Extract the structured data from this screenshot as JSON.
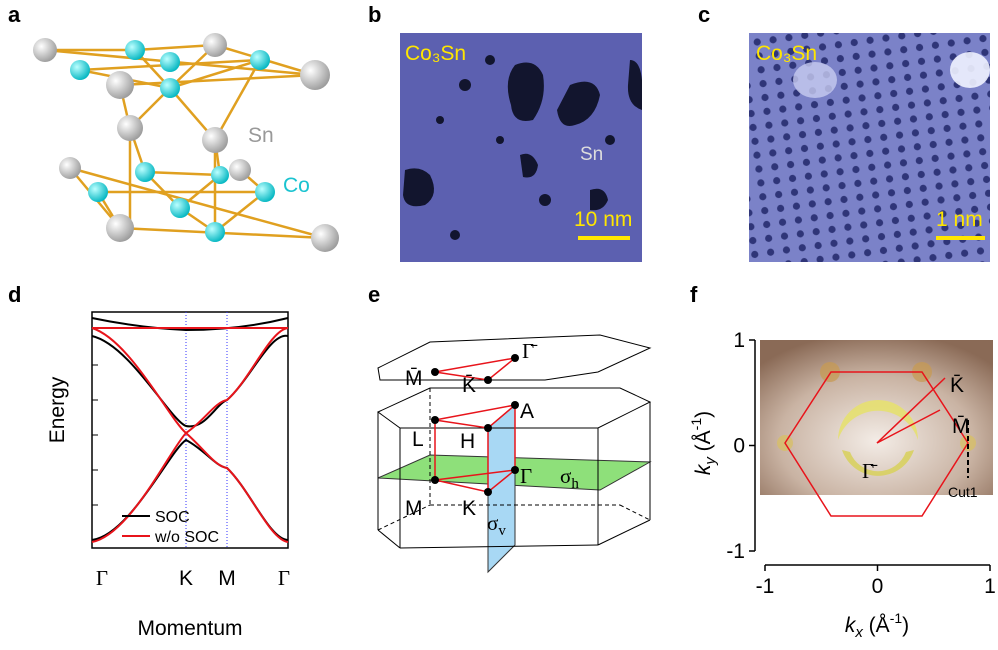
{
  "panels": {
    "a": {
      "letter": "a",
      "labels": [
        "Sn",
        "Co"
      ]
    },
    "b": {
      "letter": "b",
      "material": "Co₃Sn",
      "label": "Sn",
      "scale_bar": "10 nm"
    },
    "c": {
      "letter": "c",
      "material": "Co₃Sn",
      "scale_bar": "1 nm"
    },
    "d": {
      "letter": "d",
      "y_label": "Energy",
      "x_label": "Momentum",
      "k_points": [
        "Γ",
        "K",
        "M",
        "Γ"
      ],
      "legend": [
        {
          "name": "SOC",
          "color": "#000000"
        },
        {
          "name": "w/o SOC",
          "color": "#e8141b"
        }
      ]
    },
    "e": {
      "letter": "e",
      "surface_points": [
        "M̄",
        "K̄",
        "Γ̄"
      ],
      "bulk_points": [
        "L",
        "H",
        "A",
        "M",
        "K",
        "Γ"
      ],
      "planes": [
        {
          "symbol": "σ",
          "sub": "h"
        },
        {
          "symbol": "σ",
          "sub": "v"
        }
      ]
    },
    "f": {
      "letter": "f",
      "xticks": [
        -1,
        0,
        1
      ],
      "yticks": [
        -1,
        0,
        1
      ],
      "xlim": [
        -1,
        1
      ],
      "ylim": [
        -1,
        1
      ],
      "x_label": {
        "symbol": "k",
        "sub": "x",
        "unit": " (Å",
        "exp": "-1",
        "close": ")"
      },
      "y_label": {
        "symbol": "k",
        "sub": "y",
        "unit": " (Å",
        "exp": "-1",
        "close": ")"
      },
      "points": [
        "K̄",
        "M̄",
        "Γ̄"
      ],
      "cut": "Cut1"
    }
  }
}
